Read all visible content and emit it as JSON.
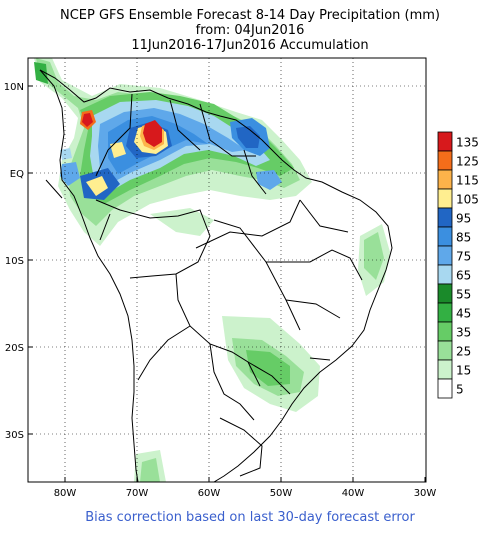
{
  "title": {
    "line1": "NCEP GFS Ensemble Forecast 8-14 Day Precipitation (mm)",
    "line2": "from: 04Jun2016",
    "line3": "11Jun2016-17Jun2016 Accumulation"
  },
  "footer": "Bias correction based on last 30-day forecast error",
  "axes": {
    "lat_labels": [
      "10N",
      "EQ",
      "10S",
      "20S",
      "30S"
    ],
    "lon_labels": [
      "80W",
      "70W",
      "60W",
      "50W",
      "40W",
      "30W"
    ]
  },
  "legend": {
    "levels": [
      {
        "label": "135",
        "color": "#d7191c"
      },
      {
        "label": "125",
        "color": "#f46d1a"
      },
      {
        "label": "115",
        "color": "#fdb34a"
      },
      {
        "label": "105",
        "color": "#ffee90"
      },
      {
        "label": "95",
        "color": "#2166c4"
      },
      {
        "label": "85",
        "color": "#3b8fe0"
      },
      {
        "label": "75",
        "color": "#5fa8ea"
      },
      {
        "label": "65",
        "color": "#a8d8f0"
      },
      {
        "label": "55",
        "color": "#1a8a2a"
      },
      {
        "label": "45",
        "color": "#33b043"
      },
      {
        "label": "35",
        "color": "#66cc66"
      },
      {
        "label": "25",
        "color": "#99e099"
      },
      {
        "label": "15",
        "color": "#ccf2cc"
      },
      {
        "label": "5",
        "color": "#ffffff"
      }
    ]
  }
}
